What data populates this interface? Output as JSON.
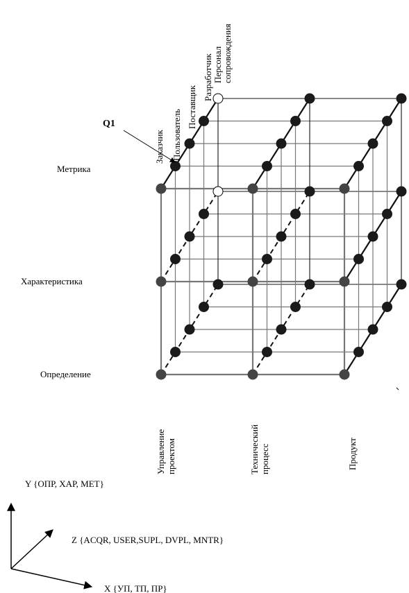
{
  "y_levels": [
    "Метрика",
    "Характеристика",
    "Определение"
  ],
  "x_levels": [
    "Управление\nпроектом",
    "Технический\nпроцесс",
    "Продукт"
  ],
  "z_levels": [
    "Заказчик",
    "Пользователь",
    "Поставщик",
    "Разработчик",
    "Персонал\nсопровождения"
  ],
  "point_label": "Q1",
  "axes": {
    "y": "Y {ОПР, ХАР, МЕТ}",
    "z": "Z {ACQR, USER,SUPL, DVPL, MNTR}",
    "x": "X {УП, ТП, ПР}"
  },
  "colors": {
    "node_dark": "#1a1a1a",
    "node_front": "#444444",
    "node_open": "#ffffff",
    "line_front": "#777777",
    "line_back": "#111111"
  }
}
